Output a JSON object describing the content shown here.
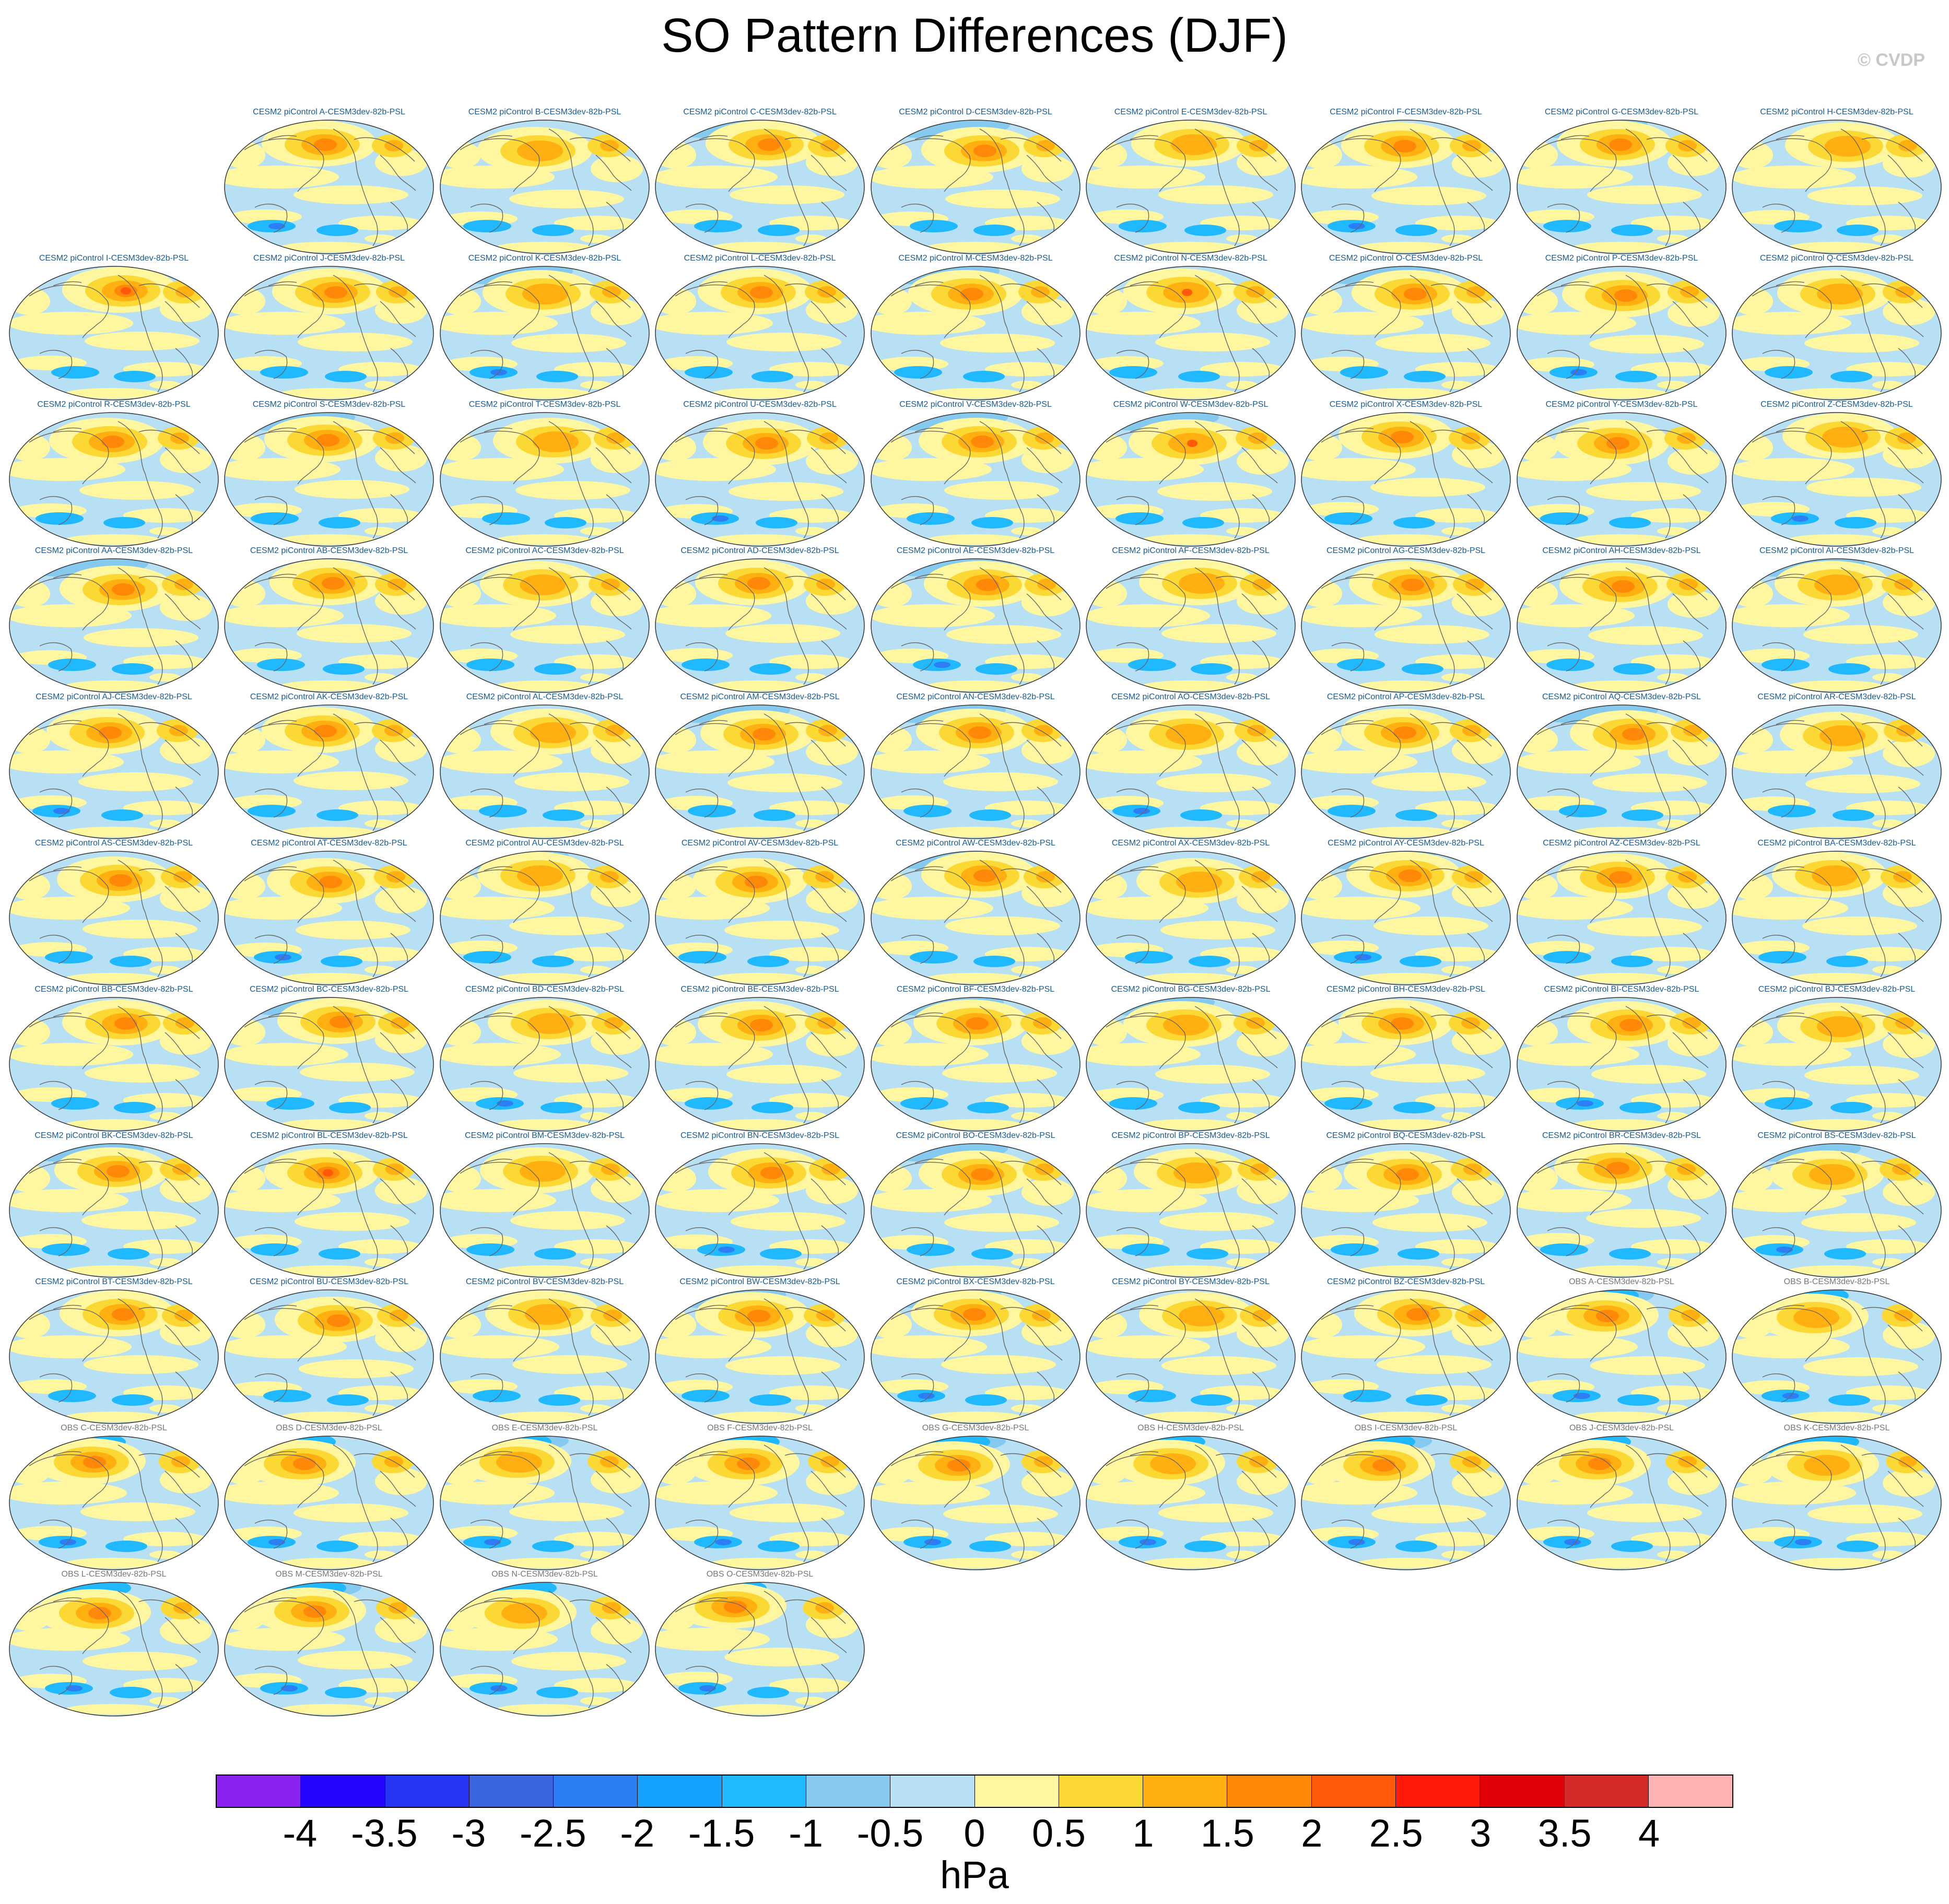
{
  "title": "SO Pattern Differences (DJF)",
  "credit": "© CVDP",
  "panels": [
    "CESM2 piControl A-CESM3dev-82b-PSL",
    "CESM2 piControl B-CESM3dev-82b-PSL",
    "CESM2 piControl C-CESM3dev-82b-PSL",
    "CESM2 piControl D-CESM3dev-82b-PSL",
    "CESM2 piControl E-CESM3dev-82b-PSL",
    "CESM2 piControl F-CESM3dev-82b-PSL",
    "CESM2 piControl G-CESM3dev-82b-PSL",
    "CESM2 piControl H-CESM3dev-82b-PSL",
    "CESM2 piControl I-CESM3dev-82b-PSL",
    "CESM2 piControl J-CESM3dev-82b-PSL",
    "CESM2 piControl K-CESM3dev-82b-PSL",
    "CESM2 piControl L-CESM3dev-82b-PSL",
    "CESM2 piControl M-CESM3dev-82b-PSL",
    "CESM2 piControl N-CESM3dev-82b-PSL",
    "CESM2 piControl O-CESM3dev-82b-PSL",
    "CESM2 piControl P-CESM3dev-82b-PSL",
    "CESM2 piControl Q-CESM3dev-82b-PSL",
    "CESM2 piControl R-CESM3dev-82b-PSL",
    "CESM2 piControl S-CESM3dev-82b-PSL",
    "CESM2 piControl T-CESM3dev-82b-PSL",
    "CESM2 piControl U-CESM3dev-82b-PSL",
    "CESM2 piControl V-CESM3dev-82b-PSL",
    "CESM2 piControl W-CESM3dev-82b-PSL",
    "CESM2 piControl X-CESM3dev-82b-PSL",
    "CESM2 piControl Y-CESM3dev-82b-PSL",
    "CESM2 piControl Z-CESM3dev-82b-PSL",
    "CESM2 piControl AA-CESM3dev-82b-PSL",
    "CESM2 piControl AB-CESM3dev-82b-PSL",
    "CESM2 piControl AC-CESM3dev-82b-PSL",
    "CESM2 piControl AD-CESM3dev-82b-PSL",
    "CESM2 piControl AE-CESM3dev-82b-PSL",
    "CESM2 piControl AF-CESM3dev-82b-PSL",
    "CESM2 piControl AG-CESM3dev-82b-PSL",
    "CESM2 piControl AH-CESM3dev-82b-PSL",
    "CESM2 piControl AI-CESM3dev-82b-PSL",
    "CESM2 piControl AJ-CESM3dev-82b-PSL",
    "CESM2 piControl AK-CESM3dev-82b-PSL",
    "CESM2 piControl AL-CESM3dev-82b-PSL",
    "CESM2 piControl AM-CESM3dev-82b-PSL",
    "CESM2 piControl AN-CESM3dev-82b-PSL",
    "CESM2 piControl AO-CESM3dev-82b-PSL",
    "CESM2 piControl AP-CESM3dev-82b-PSL",
    "CESM2 piControl AQ-CESM3dev-82b-PSL",
    "CESM2 piControl AR-CESM3dev-82b-PSL",
    "CESM2 piControl AS-CESM3dev-82b-PSL",
    "CESM2 piControl AT-CESM3dev-82b-PSL",
    "CESM2 piControl AU-CESM3dev-82b-PSL",
    "CESM2 piControl AV-CESM3dev-82b-PSL",
    "CESM2 piControl AW-CESM3dev-82b-PSL",
    "CESM2 piControl AX-CESM3dev-82b-PSL",
    "CESM2 piControl AY-CESM3dev-82b-PSL",
    "CESM2 piControl AZ-CESM3dev-82b-PSL",
    "CESM2 piControl BA-CESM3dev-82b-PSL",
    "CESM2 piControl BB-CESM3dev-82b-PSL",
    "CESM2 piControl BC-CESM3dev-82b-PSL",
    "CESM2 piControl BD-CESM3dev-82b-PSL",
    "CESM2 piControl BE-CESM3dev-82b-PSL",
    "CESM2 piControl BF-CESM3dev-82b-PSL",
    "CESM2 piControl BG-CESM3dev-82b-PSL",
    "CESM2 piControl BH-CESM3dev-82b-PSL",
    "CESM2 piControl BI-CESM3dev-82b-PSL",
    "CESM2 piControl BJ-CESM3dev-82b-PSL",
    "CESM2 piControl BK-CESM3dev-82b-PSL",
    "CESM2 piControl BL-CESM3dev-82b-PSL",
    "CESM2 piControl BM-CESM3dev-82b-PSL",
    "CESM2 piControl BN-CESM3dev-82b-PSL",
    "CESM2 piControl BO-CESM3dev-82b-PSL",
    "CESM2 piControl BP-CESM3dev-82b-PSL",
    "CESM2 piControl BQ-CESM3dev-82b-PSL",
    "CESM2 piControl BR-CESM3dev-82b-PSL",
    "CESM2 piControl BS-CESM3dev-82b-PSL",
    "CESM2 piControl BT-CESM3dev-82b-PSL",
    "CESM2 piControl BU-CESM3dev-82b-PSL",
    "CESM2 piControl BV-CESM3dev-82b-PSL",
    "CESM2 piControl BW-CESM3dev-82b-PSL",
    "CESM2 piControl BX-CESM3dev-82b-PSL",
    "CESM2 piControl BY-CESM3dev-82b-PSL",
    "CESM2 piControl BZ-CESM3dev-82b-PSL",
    "OBS A-CESM3dev-82b-PSL",
    "OBS B-CESM3dev-82b-PSL",
    "OBS C-CESM3dev-82b-PSL",
    "OBS D-CESM3dev-82b-PSL",
    "OBS E-CESM3dev-82b-PSL",
    "OBS F-CESM3dev-82b-PSL",
    "OBS G-CESM3dev-82b-PSL",
    "OBS H-CESM3dev-82b-PSL",
    "OBS I-CESM3dev-82b-PSL",
    "OBS J-CESM3dev-82b-PSL",
    "OBS K-CESM3dev-82b-PSL",
    "OBS L-CESM3dev-82b-PSL",
    "OBS M-CESM3dev-82b-PSL",
    "OBS N-CESM3dev-82b-PSL",
    "OBS O-CESM3dev-82b-PSL"
  ],
  "colorbar": {
    "colors": [
      "#8b22f0",
      "#2405ff",
      "#2436f2",
      "#3a64e0",
      "#2d7ef5",
      "#14a0ff",
      "#20b8ff",
      "#86c9ee",
      "#b8e0f4",
      "#fff7a0",
      "#fcd835",
      "#ffb010",
      "#ff8808",
      "#ff5a0a",
      "#ff1a0a",
      "#e00008",
      "#d42a2a",
      "#ffb2b2"
    ],
    "ticks": [
      "-4",
      "-3.5",
      "-3",
      "-2.5",
      "-2",
      "-1.5",
      "-1",
      "-0.5",
      "0",
      "0.5",
      "1",
      "1.5",
      "2",
      "2.5",
      "3",
      "3.5",
      "4"
    ],
    "units": "hPa"
  }
}
